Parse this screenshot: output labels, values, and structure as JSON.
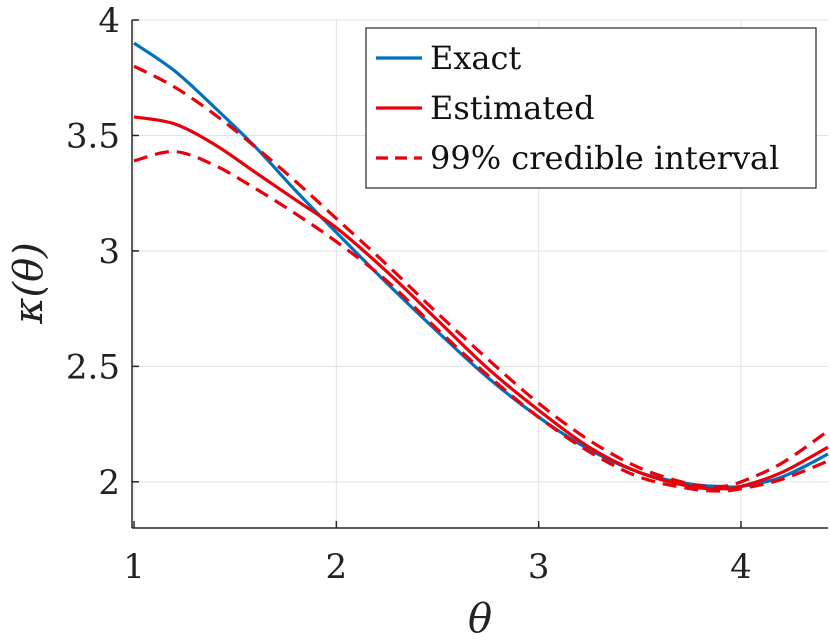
{
  "chart_data": {
    "type": "line",
    "xlabel": "θ",
    "ylabel": "κ(θ)",
    "xlim": [
      0.99,
      4.43
    ],
    "ylim": [
      1.8,
      4.0
    ],
    "xticks": [
      1,
      2,
      3,
      4
    ],
    "xtick_labels": [
      "1",
      "2",
      "3",
      "4"
    ],
    "yticks": [
      2,
      2.5,
      3,
      3.5,
      4
    ],
    "ytick_labels": [
      "2",
      "2.5",
      "3",
      "3.5",
      "4"
    ],
    "grid": true,
    "legend_position": "top-right",
    "series": [
      {
        "name": "Exact",
        "color": "#0072BD",
        "style": "solid",
        "x": [
          1.0,
          1.2,
          1.4,
          1.6,
          1.8,
          2.0,
          2.25,
          2.5,
          2.75,
          3.0,
          3.25,
          3.5,
          3.75,
          3.9,
          4.0,
          4.2,
          4.43
        ],
        "y": [
          3.9,
          3.78,
          3.62,
          3.45,
          3.26,
          3.08,
          2.86,
          2.65,
          2.45,
          2.28,
          2.14,
          2.04,
          1.99,
          1.98,
          1.98,
          2.02,
          2.12
        ]
      },
      {
        "name": "Estimated",
        "color": "#E8000B",
        "style": "solid",
        "x": [
          1.0,
          1.2,
          1.4,
          1.6,
          1.8,
          2.0,
          2.25,
          2.5,
          2.75,
          3.0,
          3.25,
          3.5,
          3.75,
          3.9,
          4.0,
          4.2,
          4.43
        ],
        "y": [
          3.58,
          3.55,
          3.46,
          3.34,
          3.22,
          3.1,
          2.91,
          2.7,
          2.49,
          2.31,
          2.15,
          2.04,
          1.98,
          1.97,
          1.98,
          2.04,
          2.15
        ]
      },
      {
        "name": "99% credible interval",
        "color": "#E8000B",
        "style": "dashed",
        "x": [
          1.0,
          1.2,
          1.4,
          1.6,
          1.8,
          2.0,
          2.25,
          2.5,
          2.75,
          3.0,
          3.25,
          3.5,
          3.75,
          3.9,
          4.0,
          4.2,
          4.43
        ],
        "y": [
          3.8,
          3.71,
          3.59,
          3.45,
          3.3,
          3.14,
          2.94,
          2.73,
          2.53,
          2.34,
          2.18,
          2.06,
          1.99,
          1.98,
          2.0,
          2.08,
          2.22
        ]
      },
      {
        "name": "",
        "color": "#E8000B",
        "style": "dashed",
        "x": [
          1.0,
          1.2,
          1.4,
          1.6,
          1.8,
          2.0,
          2.25,
          2.5,
          2.75,
          3.0,
          3.25,
          3.5,
          3.75,
          3.9,
          4.0,
          4.2,
          4.43
        ],
        "y": [
          3.39,
          3.43,
          3.37,
          3.27,
          3.16,
          3.04,
          2.87,
          2.66,
          2.46,
          2.28,
          2.13,
          2.02,
          1.97,
          1.96,
          1.97,
          2.01,
          2.09
        ]
      }
    ],
    "legend": [
      {
        "label": "Exact",
        "color": "#0072BD",
        "style": "solid"
      },
      {
        "label": "Estimated",
        "color": "#E8000B",
        "style": "solid"
      },
      {
        "label": "99% credible interval",
        "color": "#E8000B",
        "style": "dashed"
      }
    ]
  }
}
